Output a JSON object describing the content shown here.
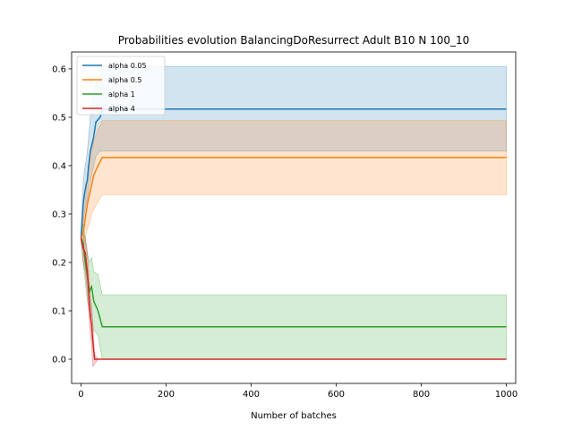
{
  "chart_data": {
    "type": "line",
    "title": "Probabilities evolution BalancingDoResurrect Adult B10 N 100_10",
    "xlabel": "Number of batches",
    "ylabel": "",
    "xlim": [
      -22,
      1022
    ],
    "ylim": [
      -0.05,
      0.635
    ],
    "xticks": [
      0,
      200,
      400,
      600,
      800,
      1000
    ],
    "yticks": [
      0.0,
      0.1,
      0.2,
      0.3,
      0.4,
      0.5,
      0.6
    ],
    "grid": false,
    "legend_position": "top-left",
    "series": [
      {
        "name": "alpha 0.05",
        "color": "#1f77b4",
        "x": [
          0,
          5,
          8,
          12,
          15,
          18,
          22,
          25,
          30,
          35,
          45,
          50,
          1000
        ],
        "y": [
          0.25,
          0.32,
          0.34,
          0.36,
          0.37,
          0.4,
          0.43,
          0.44,
          0.46,
          0.49,
          0.5,
          0.517,
          0.517
        ],
        "lower": [
          0.25,
          0.28,
          0.3,
          0.32,
          0.33,
          0.35,
          0.37,
          0.38,
          0.4,
          0.42,
          0.43,
          0.43,
          0.43
        ],
        "upper": [
          0.25,
          0.36,
          0.39,
          0.41,
          0.43,
          0.46,
          0.5,
          0.52,
          0.54,
          0.57,
          0.585,
          0.605,
          0.605
        ]
      },
      {
        "name": "alpha 0.5",
        "color": "#ff7f0e",
        "x": [
          0,
          5,
          10,
          15,
          20,
          25,
          30,
          40,
          50,
          1000
        ],
        "y": [
          0.25,
          0.26,
          0.29,
          0.32,
          0.34,
          0.36,
          0.38,
          0.4,
          0.417,
          0.417
        ],
        "lower": [
          0.25,
          0.23,
          0.25,
          0.27,
          0.28,
          0.3,
          0.31,
          0.325,
          0.34,
          0.34
        ],
        "upper": [
          0.25,
          0.29,
          0.33,
          0.37,
          0.4,
          0.43,
          0.45,
          0.475,
          0.493,
          0.493
        ]
      },
      {
        "name": "alpha 1",
        "color": "#2ca02c",
        "x": [
          0,
          5,
          10,
          15,
          20,
          25,
          30,
          40,
          50,
          1000
        ],
        "y": [
          0.25,
          0.24,
          0.2,
          0.17,
          0.14,
          0.15,
          0.12,
          0.1,
          0.067,
          0.067
        ],
        "lower": [
          0.25,
          0.2,
          0.16,
          0.12,
          0.1,
          0.09,
          0.06,
          0.05,
          0.0,
          0.0
        ],
        "upper": [
          0.25,
          0.28,
          0.25,
          0.22,
          0.2,
          0.21,
          0.18,
          0.175,
          0.133,
          0.133
        ]
      },
      {
        "name": "alpha 4",
        "color": "#d62728",
        "x": [
          0,
          5,
          10,
          15,
          18,
          22,
          25,
          28,
          32,
          40,
          1000
        ],
        "y": [
          0.25,
          0.23,
          0.22,
          0.18,
          0.14,
          0.09,
          0.07,
          0.035,
          0.0,
          0.0,
          0.0
        ],
        "lower": [
          0.25,
          0.2,
          0.18,
          0.14,
          0.1,
          0.05,
          0.03,
          -0.015,
          -0.01,
          0.0,
          0.0
        ],
        "upper": [
          0.25,
          0.26,
          0.25,
          0.22,
          0.18,
          0.13,
          0.11,
          0.07,
          0.01,
          0.0,
          0.0
        ]
      }
    ]
  }
}
